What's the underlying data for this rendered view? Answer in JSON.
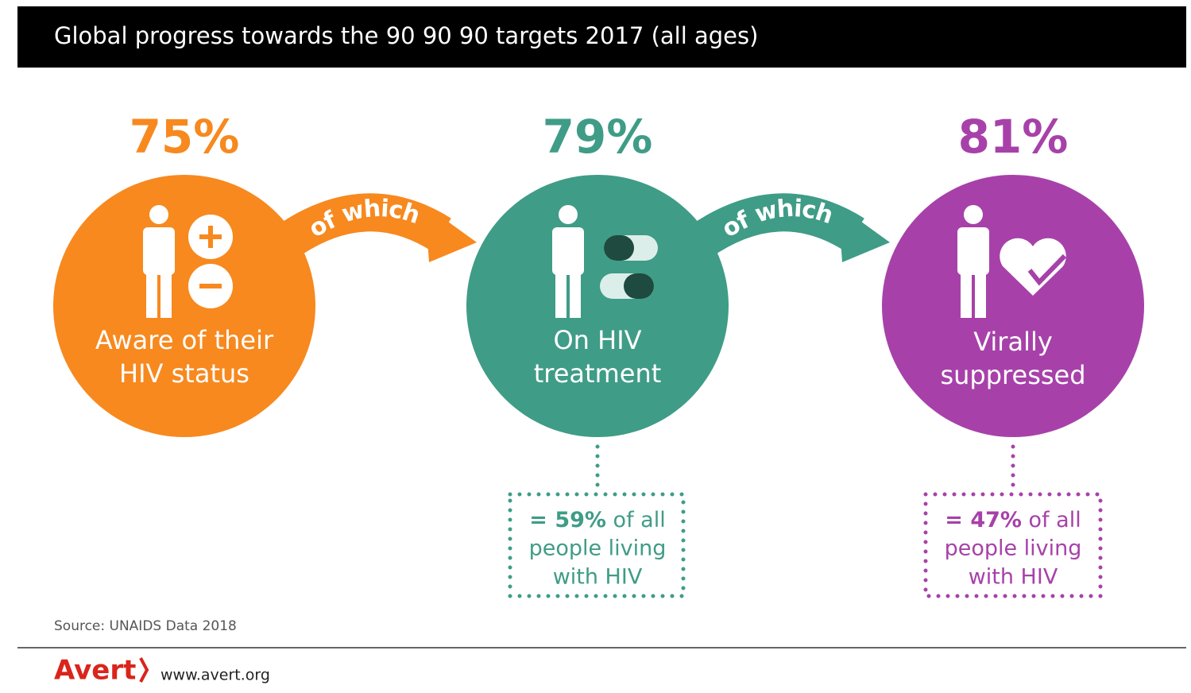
{
  "header": {
    "title": "Global progress towards the 90 90 90 targets 2017 (all ages)"
  },
  "stages": [
    {
      "percent": "75%",
      "label": [
        "Aware of their",
        "HIV status"
      ]
    },
    {
      "percent": "79%",
      "label": [
        "On HIV",
        "treatment"
      ]
    },
    {
      "percent": "81%",
      "label": [
        "Virally",
        "suppressed"
      ]
    }
  ],
  "connectors": [
    "of which",
    "of which"
  ],
  "notes": [
    {
      "highlight": "= 59%",
      "lines": [
        "of all",
        "people living",
        "with HIV"
      ]
    },
    {
      "highlight": "= 47%",
      "lines": [
        "of all",
        "people living",
        "with HIV"
      ]
    }
  ],
  "footer": {
    "source": "Source: UNAIDS Data 2018",
    "logo": "Avert",
    "url": "www.avert.org"
  }
}
